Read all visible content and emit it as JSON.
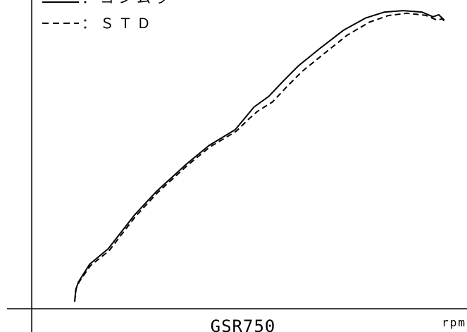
{
  "chart_data": {
    "type": "line",
    "xlabel": "GSR750",
    "ylabel": "",
    "x_unit": "rpm",
    "grid": false,
    "legend_position": "top-left",
    "series": [
      {
        "name": "ヨシムラ",
        "style": "solid",
        "color": "#000000",
        "points": [
          [
            0.0,
            0.0
          ],
          [
            0.003,
            0.042
          ],
          [
            0.01,
            0.067
          ],
          [
            0.04,
            0.128
          ],
          [
            0.09,
            0.181
          ],
          [
            0.16,
            0.296
          ],
          [
            0.22,
            0.378
          ],
          [
            0.3,
            0.471
          ],
          [
            0.36,
            0.534
          ],
          [
            0.43,
            0.588
          ],
          [
            0.46,
            0.634
          ],
          [
            0.48,
            0.665
          ],
          [
            0.52,
            0.702
          ],
          [
            0.56,
            0.756
          ],
          [
            0.6,
            0.807
          ],
          [
            0.66,
            0.869
          ],
          [
            0.72,
            0.928
          ],
          [
            0.78,
            0.97
          ],
          [
            0.83,
            0.99
          ],
          [
            0.88,
            0.995
          ],
          [
            0.93,
            0.99
          ],
          [
            0.96,
            0.974
          ],
          [
            0.975,
            0.981
          ],
          [
            0.99,
            0.963
          ]
        ]
      },
      {
        "name": "STD",
        "style": "dashed",
        "color": "#000000",
        "points": [
          [
            0.0,
            0.0
          ],
          [
            0.004,
            0.044
          ],
          [
            0.012,
            0.068
          ],
          [
            0.042,
            0.123
          ],
          [
            0.092,
            0.174
          ],
          [
            0.162,
            0.29
          ],
          [
            0.222,
            0.373
          ],
          [
            0.302,
            0.466
          ],
          [
            0.362,
            0.529
          ],
          [
            0.432,
            0.582
          ],
          [
            0.465,
            0.623
          ],
          [
            0.49,
            0.651
          ],
          [
            0.53,
            0.683
          ],
          [
            0.57,
            0.737
          ],
          [
            0.61,
            0.788
          ],
          [
            0.67,
            0.85
          ],
          [
            0.73,
            0.911
          ],
          [
            0.79,
            0.956
          ],
          [
            0.84,
            0.978
          ],
          [
            0.89,
            0.986
          ],
          [
            0.94,
            0.979
          ],
          [
            0.97,
            0.963
          ],
          [
            0.985,
            0.967
          ],
          [
            0.995,
            0.952
          ]
        ]
      }
    ]
  },
  "legend": [
    {
      "label": "：ヨシムラ",
      "style": "solid"
    },
    {
      "label": "：ＳＴＤ",
      "style": "dashed"
    }
  ]
}
